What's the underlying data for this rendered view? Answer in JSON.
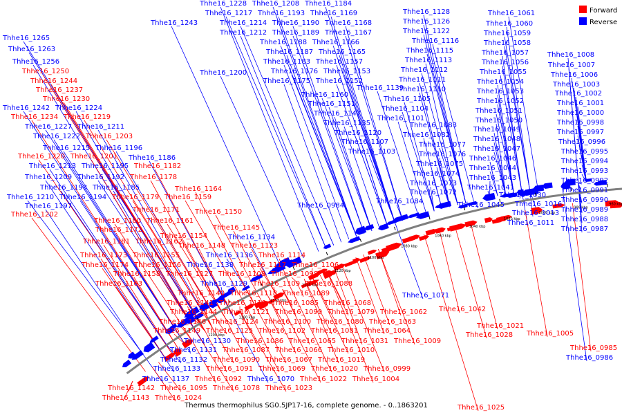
{
  "caption": "Thermus thermophilus SG0.5JP17-16, complete genome. - 0..1863201",
  "legend": [
    {
      "label": "Forward",
      "color": "#ff0000"
    },
    {
      "label": "Reverse",
      "color": "#0000ff"
    }
  ],
  "colors": {
    "forward": "#ff0000",
    "reverse": "#0000ff",
    "backbone": "#7f7f7f"
  },
  "scale_ticks": [
    "1200 kbp",
    "1180 kbp",
    "1160 kbp",
    "1140 kbp",
    "1120 kbp",
    "1100 kbp",
    "1080 kbp",
    "1060 kbp",
    "1040 kbp",
    "1020 kbp",
    "1000 kbp",
    "980 kbp",
    "960 kbp",
    "940 kbp"
  ],
  "labels": [
    {
      "text": "Thhe16_1228",
      "strand": "r"
    },
    {
      "text": "Thhe16_1208",
      "strand": "r"
    },
    {
      "text": "Thhe16_1184",
      "strand": "r"
    },
    {
      "text": "Thhe16_1217",
      "strand": "r"
    },
    {
      "text": "Thhe16_1193",
      "strand": "r"
    },
    {
      "text": "Thhe16_1169",
      "strand": "r"
    },
    {
      "text": "Thhe16_1243",
      "strand": "r"
    },
    {
      "text": "Thhe16_1214",
      "strand": "r"
    },
    {
      "text": "Thhe16_1190",
      "strand": "r"
    },
    {
      "text": "Thhe16_1168",
      "strand": "r"
    },
    {
      "text": "Thhe16_1212",
      "strand": "r"
    },
    {
      "text": "Thhe16_1189",
      "strand": "r"
    },
    {
      "text": "Thhe16_1167",
      "strand": "r"
    },
    {
      "text": "Thhe16_1188",
      "strand": "r"
    },
    {
      "text": "Thhe16_1166",
      "strand": "r"
    },
    {
      "text": "Thhe16_1187",
      "strand": "r"
    },
    {
      "text": "Thhe16_1165",
      "strand": "r"
    },
    {
      "text": "Thhe16_1183",
      "strand": "r"
    },
    {
      "text": "Thhe16_1157",
      "strand": "r"
    },
    {
      "text": "Thhe16_1200",
      "strand": "r"
    },
    {
      "text": "Thhe16_1176",
      "strand": "r"
    },
    {
      "text": "Thhe16_1153",
      "strand": "r"
    },
    {
      "text": "Thhe16_1175",
      "strand": "r"
    },
    {
      "text": "Thhe16_1152",
      "strand": "r"
    },
    {
      "text": "Thhe16_1139",
      "strand": "r"
    },
    {
      "text": "Thhe16_1160",
      "strand": "r"
    },
    {
      "text": "Thhe16_1151",
      "strand": "r"
    },
    {
      "text": "Thhe16_1147",
      "strand": "r"
    },
    {
      "text": "Thhe16_1135",
      "strand": "r"
    },
    {
      "text": "Thhe16_1120",
      "strand": "r"
    },
    {
      "text": "Thhe16_1107",
      "strand": "r"
    },
    {
      "text": "Thhe16_1103",
      "strand": "r"
    },
    {
      "text": "Thhe16_1128",
      "strand": "r"
    },
    {
      "text": "Thhe16_1126",
      "strand": "r"
    },
    {
      "text": "Thhe16_1122",
      "strand": "r"
    },
    {
      "text": "Thhe16_1116",
      "strand": "r"
    },
    {
      "text": "Thhe16_1115",
      "strand": "r"
    },
    {
      "text": "Thhe16_1113",
      "strand": "r"
    },
    {
      "text": "Thhe16_1112",
      "strand": "r"
    },
    {
      "text": "Thhe16_1111",
      "strand": "r"
    },
    {
      "text": "Thhe16_1110",
      "strand": "r"
    },
    {
      "text": "Thhe16_1105",
      "strand": "r"
    },
    {
      "text": "Thhe16_1104",
      "strand": "r"
    },
    {
      "text": "Thhe16_1101",
      "strand": "r"
    },
    {
      "text": "Thhe16_1083",
      "strand": "r"
    },
    {
      "text": "Thhe16_1082",
      "strand": "r"
    },
    {
      "text": "Thhe16_1077",
      "strand": "r"
    },
    {
      "text": "Thhe16_1076",
      "strand": "r"
    },
    {
      "text": "Thhe16_1075",
      "strand": "r"
    },
    {
      "text": "Thhe16_1074",
      "strand": "r"
    },
    {
      "text": "Thhe16_1073",
      "strand": "r"
    },
    {
      "text": "Thhe16_1072",
      "strand": "r"
    },
    {
      "text": "Thhe16_1084",
      "strand": "r"
    },
    {
      "text": "Thhe16_1061",
      "strand": "r"
    },
    {
      "text": "Thhe16_1060",
      "strand": "r"
    },
    {
      "text": "Thhe16_1059",
      "strand": "r"
    },
    {
      "text": "Thhe16_1058",
      "strand": "r"
    },
    {
      "text": "Thhe16_1057",
      "strand": "r"
    },
    {
      "text": "Thhe16_1056",
      "strand": "r"
    },
    {
      "text": "Thhe16_1055",
      "strand": "r"
    },
    {
      "text": "Thhe16_1054",
      "strand": "r"
    },
    {
      "text": "Thhe16_1053",
      "strand": "r"
    },
    {
      "text": "Thhe16_1052",
      "strand": "r"
    },
    {
      "text": "Thhe16_1051",
      "strand": "r"
    },
    {
      "text": "Thhe16_1050",
      "strand": "r"
    },
    {
      "text": "Thhe16_1049",
      "strand": "r"
    },
    {
      "text": "Thhe16_1048",
      "strand": "r"
    },
    {
      "text": "Thhe16_1047",
      "strand": "r"
    },
    {
      "text": "Thhe16_1046",
      "strand": "r"
    },
    {
      "text": "Thhe16_1044",
      "strand": "r"
    },
    {
      "text": "Thhe16_1043",
      "strand": "r"
    },
    {
      "text": "Thhe16_1041",
      "strand": "r"
    },
    {
      "text": "Thhe16_1030",
      "strand": "r"
    },
    {
      "text": "Thhe16_1045",
      "strand": "r"
    },
    {
      "text": "Thhe16_1016",
      "strand": "r"
    },
    {
      "text": "Thhe16_1013",
      "strand": "r"
    },
    {
      "text": "Thhe16_1011",
      "strand": "r"
    },
    {
      "text": "Thhe16_1008",
      "strand": "r"
    },
    {
      "text": "Thhe16_1007",
      "strand": "r"
    },
    {
      "text": "Thhe16_1006",
      "strand": "r"
    },
    {
      "text": "Thhe16_1003",
      "strand": "r"
    },
    {
      "text": "Thhe16_1002",
      "strand": "r"
    },
    {
      "text": "Thhe16_1001",
      "strand": "r"
    },
    {
      "text": "Thhe16_1000",
      "strand": "r"
    },
    {
      "text": "Thhe16_0998",
      "strand": "r"
    },
    {
      "text": "Thhe16_0997",
      "strand": "r"
    },
    {
      "text": "Thhe16_0996",
      "strand": "r"
    },
    {
      "text": "Thhe16_0995",
      "strand": "r"
    },
    {
      "text": "Thhe16_0994",
      "strand": "r"
    },
    {
      "text": "Thhe16_0993",
      "strand": "r"
    },
    {
      "text": "Thhe16_0992",
      "strand": "r"
    },
    {
      "text": "Thhe16_0991",
      "strand": "r"
    },
    {
      "text": "Thhe16_0990",
      "strand": "r"
    },
    {
      "text": "Thhe16_0989",
      "strand": "r"
    },
    {
      "text": "Thhe16_0988",
      "strand": "r"
    },
    {
      "text": "Thhe16_0987",
      "strand": "r"
    },
    {
      "text": "Thhe16_1265",
      "strand": "r"
    },
    {
      "text": "Thhe16_1263",
      "strand": "r"
    },
    {
      "text": "Thhe16_1256",
      "strand": "r"
    },
    {
      "text": "Thhe16_1250",
      "strand": "f"
    },
    {
      "text": "Thhe16_1244",
      "strand": "f"
    },
    {
      "text": "Thhe16_1237",
      "strand": "f"
    },
    {
      "text": "Thhe16_1230",
      "strand": "f"
    },
    {
      "text": "Thhe16_1242",
      "strand": "r"
    },
    {
      "text": "Thhe16_1224",
      "strand": "r"
    },
    {
      "text": "Thhe16_1234",
      "strand": "f"
    },
    {
      "text": "Thhe16_1219",
      "strand": "f"
    },
    {
      "text": "Thhe16_1227",
      "strand": "r"
    },
    {
      "text": "Thhe16_1211",
      "strand": "r"
    },
    {
      "text": "Thhe16_1222",
      "strand": "r"
    },
    {
      "text": "Thhe16_1203",
      "strand": "f"
    },
    {
      "text": "Thhe16_1215",
      "strand": "r"
    },
    {
      "text": "Thhe16_1196",
      "strand": "r"
    },
    {
      "text": "Thhe16_1220",
      "strand": "f"
    },
    {
      "text": "Thhe16_1201",
      "strand": "f"
    },
    {
      "text": "Thhe16_1186",
      "strand": "r"
    },
    {
      "text": "Thhe16_1213",
      "strand": "r"
    },
    {
      "text": "Thhe16_1195",
      "strand": "r"
    },
    {
      "text": "Thhe16_1182",
      "strand": "f"
    },
    {
      "text": "Thhe16_1209",
      "strand": "r"
    },
    {
      "text": "Thhe16_1192",
      "strand": "r"
    },
    {
      "text": "Thhe16_1178",
      "strand": "f"
    },
    {
      "text": "Thhe16_1198",
      "strand": "r"
    },
    {
      "text": "Thhe16_1185",
      "strand": "r"
    },
    {
      "text": "Thhe16_1164",
      "strand": "f"
    },
    {
      "text": "Thhe16_1210",
      "strand": "r"
    },
    {
      "text": "Thhe16_1194",
      "strand": "r"
    },
    {
      "text": "Thhe16_1179",
      "strand": "f"
    },
    {
      "text": "Thhe16_1159",
      "strand": "f"
    },
    {
      "text": "Thhe16_1197",
      "strand": "r"
    },
    {
      "text": "Thhe16_1171",
      "strand": "f"
    },
    {
      "text": "Thhe16_1202",
      "strand": "f"
    },
    {
      "text": "Thhe16_1150",
      "strand": "f"
    },
    {
      "text": "Thhe16_1180",
      "strand": "f"
    },
    {
      "text": "Thhe16_1161",
      "strand": "f"
    },
    {
      "text": "Thhe16_1145",
      "strand": "f"
    },
    {
      "text": "Thhe16_1172",
      "strand": "f"
    },
    {
      "text": "Thhe16_1154",
      "strand": "f"
    },
    {
      "text": "Thhe16_1134",
      "strand": "r"
    },
    {
      "text": "Thhe16_1181",
      "strand": "f"
    },
    {
      "text": "Thhe16_1162",
      "strand": "f"
    },
    {
      "text": "Thhe16_1148",
      "strand": "f"
    },
    {
      "text": "Thhe16_1123",
      "strand": "f"
    },
    {
      "text": "Thhe16_1173",
      "strand": "f"
    },
    {
      "text": "Thhe16_1155",
      "strand": "f"
    },
    {
      "text": "Thhe16_1136",
      "strand": "r"
    },
    {
      "text": "Thhe16_1114",
      "strand": "f"
    },
    {
      "text": "Thhe16_1174",
      "strand": "f"
    },
    {
      "text": "Thhe16_1156",
      "strand": "f"
    },
    {
      "text": "Thhe16_1138",
      "strand": "r"
    },
    {
      "text": "Thhe16_1117",
      "strand": "f"
    },
    {
      "text": "Thhe16_1106",
      "strand": "f"
    },
    {
      "text": "Thhe16_1158",
      "strand": "f"
    },
    {
      "text": "Thhe16_1127",
      "strand": "f"
    },
    {
      "text": "Thhe16_1108",
      "strand": "f"
    },
    {
      "text": "Thhe16_1098",
      "strand": "f"
    },
    {
      "text": "Thhe16_1163",
      "strand": "f"
    },
    {
      "text": "Thhe16_1129",
      "strand": "r"
    },
    {
      "text": "Thhe16_1109",
      "strand": "f"
    },
    {
      "text": "Thhe16_1088",
      "strand": "f"
    },
    {
      "text": "Thhe16_1140",
      "strand": "f"
    },
    {
      "text": "Thhe16_1118",
      "strand": "f"
    },
    {
      "text": "Thhe16_1089",
      "strand": "f"
    },
    {
      "text": "Thhe16_1071",
      "strand": "r"
    },
    {
      "text": "Thhe16_1141",
      "strand": "f"
    },
    {
      "text": "Thhe16_1119",
      "strand": "f"
    },
    {
      "text": "Thhe16_1085",
      "strand": "f"
    },
    {
      "text": "Thhe16_1068",
      "strand": "f"
    },
    {
      "text": "Thhe16_1144",
      "strand": "f"
    },
    {
      "text": "Thhe16_1121",
      "strand": "f"
    },
    {
      "text": "Thhe16_1099",
      "strand": "f"
    },
    {
      "text": "Thhe16_1079",
      "strand": "f"
    },
    {
      "text": "Thhe16_1062",
      "strand": "f"
    },
    {
      "text": "Thhe16_1042",
      "strand": "f"
    },
    {
      "text": "Thhe16_1146",
      "strand": "f"
    },
    {
      "text": "Thhe16_1124",
      "strand": "f"
    },
    {
      "text": "Thhe16_1100",
      "strand": "f"
    },
    {
      "text": "Thhe16_1080",
      "strand": "f"
    },
    {
      "text": "Thhe16_1063",
      "strand": "f"
    },
    {
      "text": "Thhe16_1149",
      "strand": "f"
    },
    {
      "text": "Thhe16_1125",
      "strand": "f"
    },
    {
      "text": "Thhe16_1102",
      "strand": "f"
    },
    {
      "text": "Thhe16_1081",
      "strand": "f"
    },
    {
      "text": "Thhe16_1064",
      "strand": "f"
    },
    {
      "text": "Thhe16_1021",
      "strand": "f"
    },
    {
      "text": "Thhe16_1028",
      "strand": "f"
    },
    {
      "text": "Thhe16_1005",
      "strand": "f"
    },
    {
      "text": "Thhe16_1130",
      "strand": "r"
    },
    {
      "text": "Thhe16_1086",
      "strand": "f"
    },
    {
      "text": "Thhe16_1065",
      "strand": "f"
    },
    {
      "text": "Thhe16_1031",
      "strand": "f"
    },
    {
      "text": "Thhe16_1009",
      "strand": "f"
    },
    {
      "text": "Thhe16_0984",
      "strand": "r"
    },
    {
      "text": "Thhe16_0985",
      "strand": "f"
    },
    {
      "text": "Thhe16_0986",
      "strand": "r"
    },
    {
      "text": "Thhe16_1131",
      "strand": "r"
    },
    {
      "text": "Thhe16_1087",
      "strand": "f"
    },
    {
      "text": "Thhe16_1066",
      "strand": "f"
    },
    {
      "text": "Thhe16_1010",
      "strand": "f"
    },
    {
      "text": "Thhe16_1132",
      "strand": "r"
    },
    {
      "text": "Thhe16_1090",
      "strand": "f"
    },
    {
      "text": "Thhe16_1067",
      "strand": "f"
    },
    {
      "text": "Thhe16_1019",
      "strand": "f"
    },
    {
      "text": "Thhe16_1133",
      "strand": "r"
    },
    {
      "text": "Thhe16_1091",
      "strand": "f"
    },
    {
      "text": "Thhe16_1069",
      "strand": "f"
    },
    {
      "text": "Thhe16_1020",
      "strand": "f"
    },
    {
      "text": "Thhe16_0999",
      "strand": "f"
    },
    {
      "text": "Thhe16_1137",
      "strand": "r"
    },
    {
      "text": "Thhe16_1092",
      "strand": "f"
    },
    {
      "text": "Thhe16_1070",
      "strand": "r"
    },
    {
      "text": "Thhe16_1022",
      "strand": "f"
    },
    {
      "text": "Thhe16_1004",
      "strand": "f"
    },
    {
      "text": "Thhe16_1142",
      "strand": "f"
    },
    {
      "text": "Thhe16_1095",
      "strand": "f"
    },
    {
      "text": "Thhe16_1078",
      "strand": "f"
    },
    {
      "text": "Thhe16_1023",
      "strand": "f"
    },
    {
      "text": "Thhe16_1143",
      "strand": "f"
    },
    {
      "text": "Thhe16_1024",
      "strand": "f"
    },
    {
      "text": "Thhe16_1025",
      "strand": "f"
    }
  ]
}
